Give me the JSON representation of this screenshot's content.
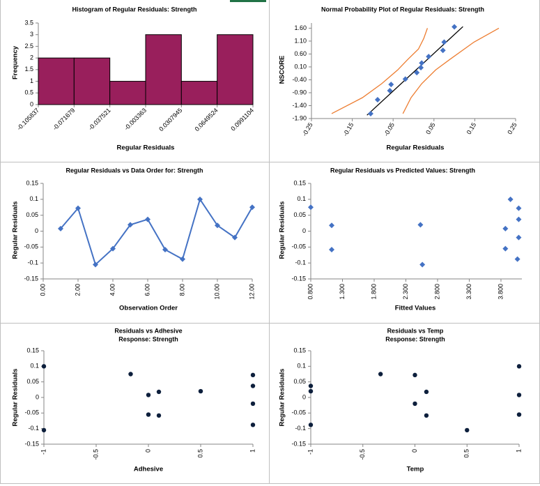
{
  "chart_data": [
    {
      "type": "histogram",
      "title": "Histogram of Regular Residuals: Strength",
      "x_label": "Regular Residuals",
      "y_label": "Frequency",
      "bins": [
        -0.105837,
        -0.071679,
        -0.037521,
        -0.003363,
        0.0307945,
        0.0649524,
        0.0991104
      ],
      "values": [
        2,
        2,
        1,
        3,
        1,
        3
      ],
      "color": "#991f5c",
      "xlim": [
        -0.105837,
        0.0991104
      ],
      "ylim": [
        0,
        3.5
      ],
      "yticks": [
        0,
        0.5,
        1,
        1.5,
        2,
        2.5,
        3,
        3.5
      ]
    },
    {
      "type": "scatter",
      "title": "Normal Probability Plot of Regular Residuals: Strength",
      "x_label": "Regular Residuals",
      "y_label": "NSCORE",
      "xlim": [
        -0.25,
        0.25
      ],
      "xticks": [
        -0.25,
        -0.15,
        -0.05,
        0.05,
        0.15,
        0.25
      ],
      "ylim": [
        -1.9,
        1.8
      ],
      "yticks": [
        {
          "value": -1.9,
          "label": "-1.90"
        },
        {
          "value": -1.4,
          "label": "-1.40"
        },
        {
          "value": -0.9,
          "label": "-0.90"
        },
        {
          "value": -0.4,
          "label": "-0.40"
        },
        {
          "value": 0.1,
          "label": "0.10"
        },
        {
          "value": 0.6,
          "label": "0.60"
        },
        {
          "value": 1.1,
          "label": "1.10"
        },
        {
          "value": 1.6,
          "label": "1.60"
        }
      ],
      "series": [
        {
          "color": "#ed7d31",
          "line": true,
          "x": [
            -0.2005,
            -0.125,
            -0.078,
            -0.039,
            -0.014,
            0.012,
            0.025,
            0.034
          ],
          "values": [
            -1.71,
            -1.09,
            -0.55,
            -0.02,
            0.39,
            0.79,
            1.2,
            1.6
          ]
        },
        {
          "color": "#ed7d31",
          "line": true,
          "x": [
            -0.026,
            -0.006,
            0.02,
            0.054,
            0.089,
            0.148,
            0.209
          ],
          "values": [
            -1.71,
            -1.09,
            -0.55,
            -0.02,
            0.39,
            1.06,
            1.6
          ]
        },
        {
          "color": "#000000",
          "line": true,
          "x": [
            -0.114,
            0.121
          ],
          "values": [
            -1.77,
            1.66
          ]
        },
        {
          "color": "#4472c4",
          "marker": "diamond",
          "x": [
            -0.105,
            -0.088,
            -0.058,
            -0.055,
            -0.02,
            0.008,
            0.018,
            0.02,
            0.037,
            0.072,
            0.075,
            0.1
          ],
          "values": [
            -1.71,
            -1.17,
            -0.82,
            -0.58,
            -0.37,
            -0.12,
            0.07,
            0.25,
            0.5,
            0.74,
            1.06,
            1.65
          ]
        }
      ]
    },
    {
      "type": "line",
      "title": "Regular Residuals vs Data Order for: Strength",
      "x_label": "Observation Order",
      "y_label": "Regular Residuals",
      "xlim": [
        0,
        12
      ],
      "xticks": [
        {
          "value": 0,
          "label": "0.00"
        },
        {
          "value": 2,
          "label": "2.00"
        },
        {
          "value": 4,
          "label": "4.00"
        },
        {
          "value": 6,
          "label": "6.00"
        },
        {
          "value": 8,
          "label": "8.00"
        },
        {
          "value": 10,
          "label": "10.00"
        },
        {
          "value": 12,
          "label": "12.00"
        }
      ],
      "ylim": [
        -0.15,
        0.15
      ],
      "yticks": [
        -0.15,
        -0.1,
        -0.05,
        0,
        0.05,
        0.1,
        0.15
      ],
      "series": [
        {
          "color": "#4472c4",
          "line": true,
          "marker": "diamond",
          "x": [
            1,
            2,
            3,
            4,
            5,
            6,
            7,
            8,
            9,
            10,
            11,
            12
          ],
          "values": [
            0.008,
            0.072,
            -0.105,
            -0.055,
            0.02,
            0.037,
            -0.058,
            -0.088,
            0.1,
            0.018,
            -0.02,
            0.075
          ]
        }
      ]
    },
    {
      "type": "scatter",
      "title": "Regular Residuals vs Predicted Values: Strength",
      "x_label": "Fitted Values",
      "y_label": "Regular Residuals",
      "xlim": [
        0.8,
        4.13
      ],
      "xticks": [
        {
          "value": 0.8,
          "label": "0.800"
        },
        {
          "value": 1.3,
          "label": "1.300"
        },
        {
          "value": 1.8,
          "label": "1.800"
        },
        {
          "value": 2.3,
          "label": "2.300"
        },
        {
          "value": 2.8,
          "label": "2.800"
        },
        {
          "value": 3.3,
          "label": "3.300"
        },
        {
          "value": 3.8,
          "label": "3.800"
        }
      ],
      "ylim": [
        -0.15,
        0.15
      ],
      "yticks": [
        -0.15,
        -0.1,
        -0.05,
        0,
        0.05,
        0.1,
        0.15
      ],
      "series": [
        {
          "color": "#4472c4",
          "marker": "diamond",
          "x": [
            0.8,
            1.13,
            1.13,
            2.53,
            2.56,
            3.87,
            3.87,
            3.95,
            4.08,
            4.08,
            4.08,
            4.06
          ],
          "values": [
            0.075,
            0.018,
            -0.058,
            0.02,
            -0.105,
            0.008,
            -0.055,
            0.1,
            0.072,
            0.037,
            -0.02,
            -0.088
          ]
        }
      ]
    },
    {
      "type": "scatter",
      "title": "Residuals vs Adhesive",
      "subtitle": "Response: Strength",
      "x_label": "Adhesive",
      "y_label": "Regular Residuals",
      "xlim": [
        -1,
        1
      ],
      "xticks": [
        -1,
        -0.5,
        0,
        0.5,
        1
      ],
      "ylim": [
        -0.15,
        0.15
      ],
      "yticks": [
        -0.15,
        -0.1,
        -0.05,
        0,
        0.05,
        0.1,
        0.15
      ],
      "series": [
        {
          "color": "#0d1f3c",
          "marker": "circle",
          "x": [
            -1,
            -1,
            -0.17,
            0,
            0,
            0.1,
            0.1,
            0.5,
            1,
            1,
            1,
            1
          ],
          "values": [
            0.1,
            -0.105,
            0.075,
            0.008,
            -0.055,
            0.018,
            -0.058,
            0.02,
            0.072,
            0.037,
            -0.02,
            -0.088
          ]
        }
      ]
    },
    {
      "type": "scatter",
      "title": "Residuals vs Temp",
      "subtitle": "Response: Strength",
      "x_label": "Temp",
      "y_label": "Regular Residuals",
      "xlim": [
        -1,
        1
      ],
      "xticks": [
        -1,
        -0.5,
        0,
        0.5,
        1
      ],
      "ylim": [
        -0.15,
        0.15
      ],
      "yticks": [
        -0.15,
        -0.1,
        -0.05,
        0,
        0.05,
        0.1,
        0.15
      ],
      "series": [
        {
          "color": "#0d1f3c",
          "marker": "circle",
          "x": [
            -1,
            -1,
            -1,
            -0.33,
            0,
            0,
            0.11,
            0.11,
            0.5,
            1,
            1,
            1
          ],
          "values": [
            0.037,
            0.02,
            -0.088,
            0.075,
            0.072,
            -0.02,
            0.018,
            -0.058,
            -0.105,
            0.1,
            0.008,
            -0.055
          ]
        }
      ]
    }
  ]
}
